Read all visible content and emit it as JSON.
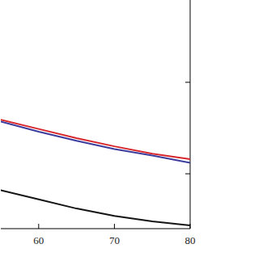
{
  "chart_data": {
    "type": "line",
    "x": [
      55,
      60,
      65,
      70,
      75,
      80
    ],
    "series": [
      {
        "color": "#d7262b",
        "values": [
          1.19,
          1.09,
          0.99,
          0.9,
          0.82,
          0.76
        ]
      },
      {
        "color": "#3b3c9c",
        "values": [
          1.17,
          1.06,
          0.96,
          0.87,
          0.8,
          0.72
        ]
      },
      {
        "color": "#141414",
        "values": [
          0.42,
          0.32,
          0.22,
          0.14,
          0.08,
          0.035
        ]
      }
    ],
    "xlim": [
      55,
      80
    ],
    "xticks": [
      60,
      70,
      80
    ],
    "ylim": [
      0,
      2.5
    ],
    "yticks": [
      0.6,
      1.6
    ],
    "tick_labels": "x",
    "grid": false
  }
}
